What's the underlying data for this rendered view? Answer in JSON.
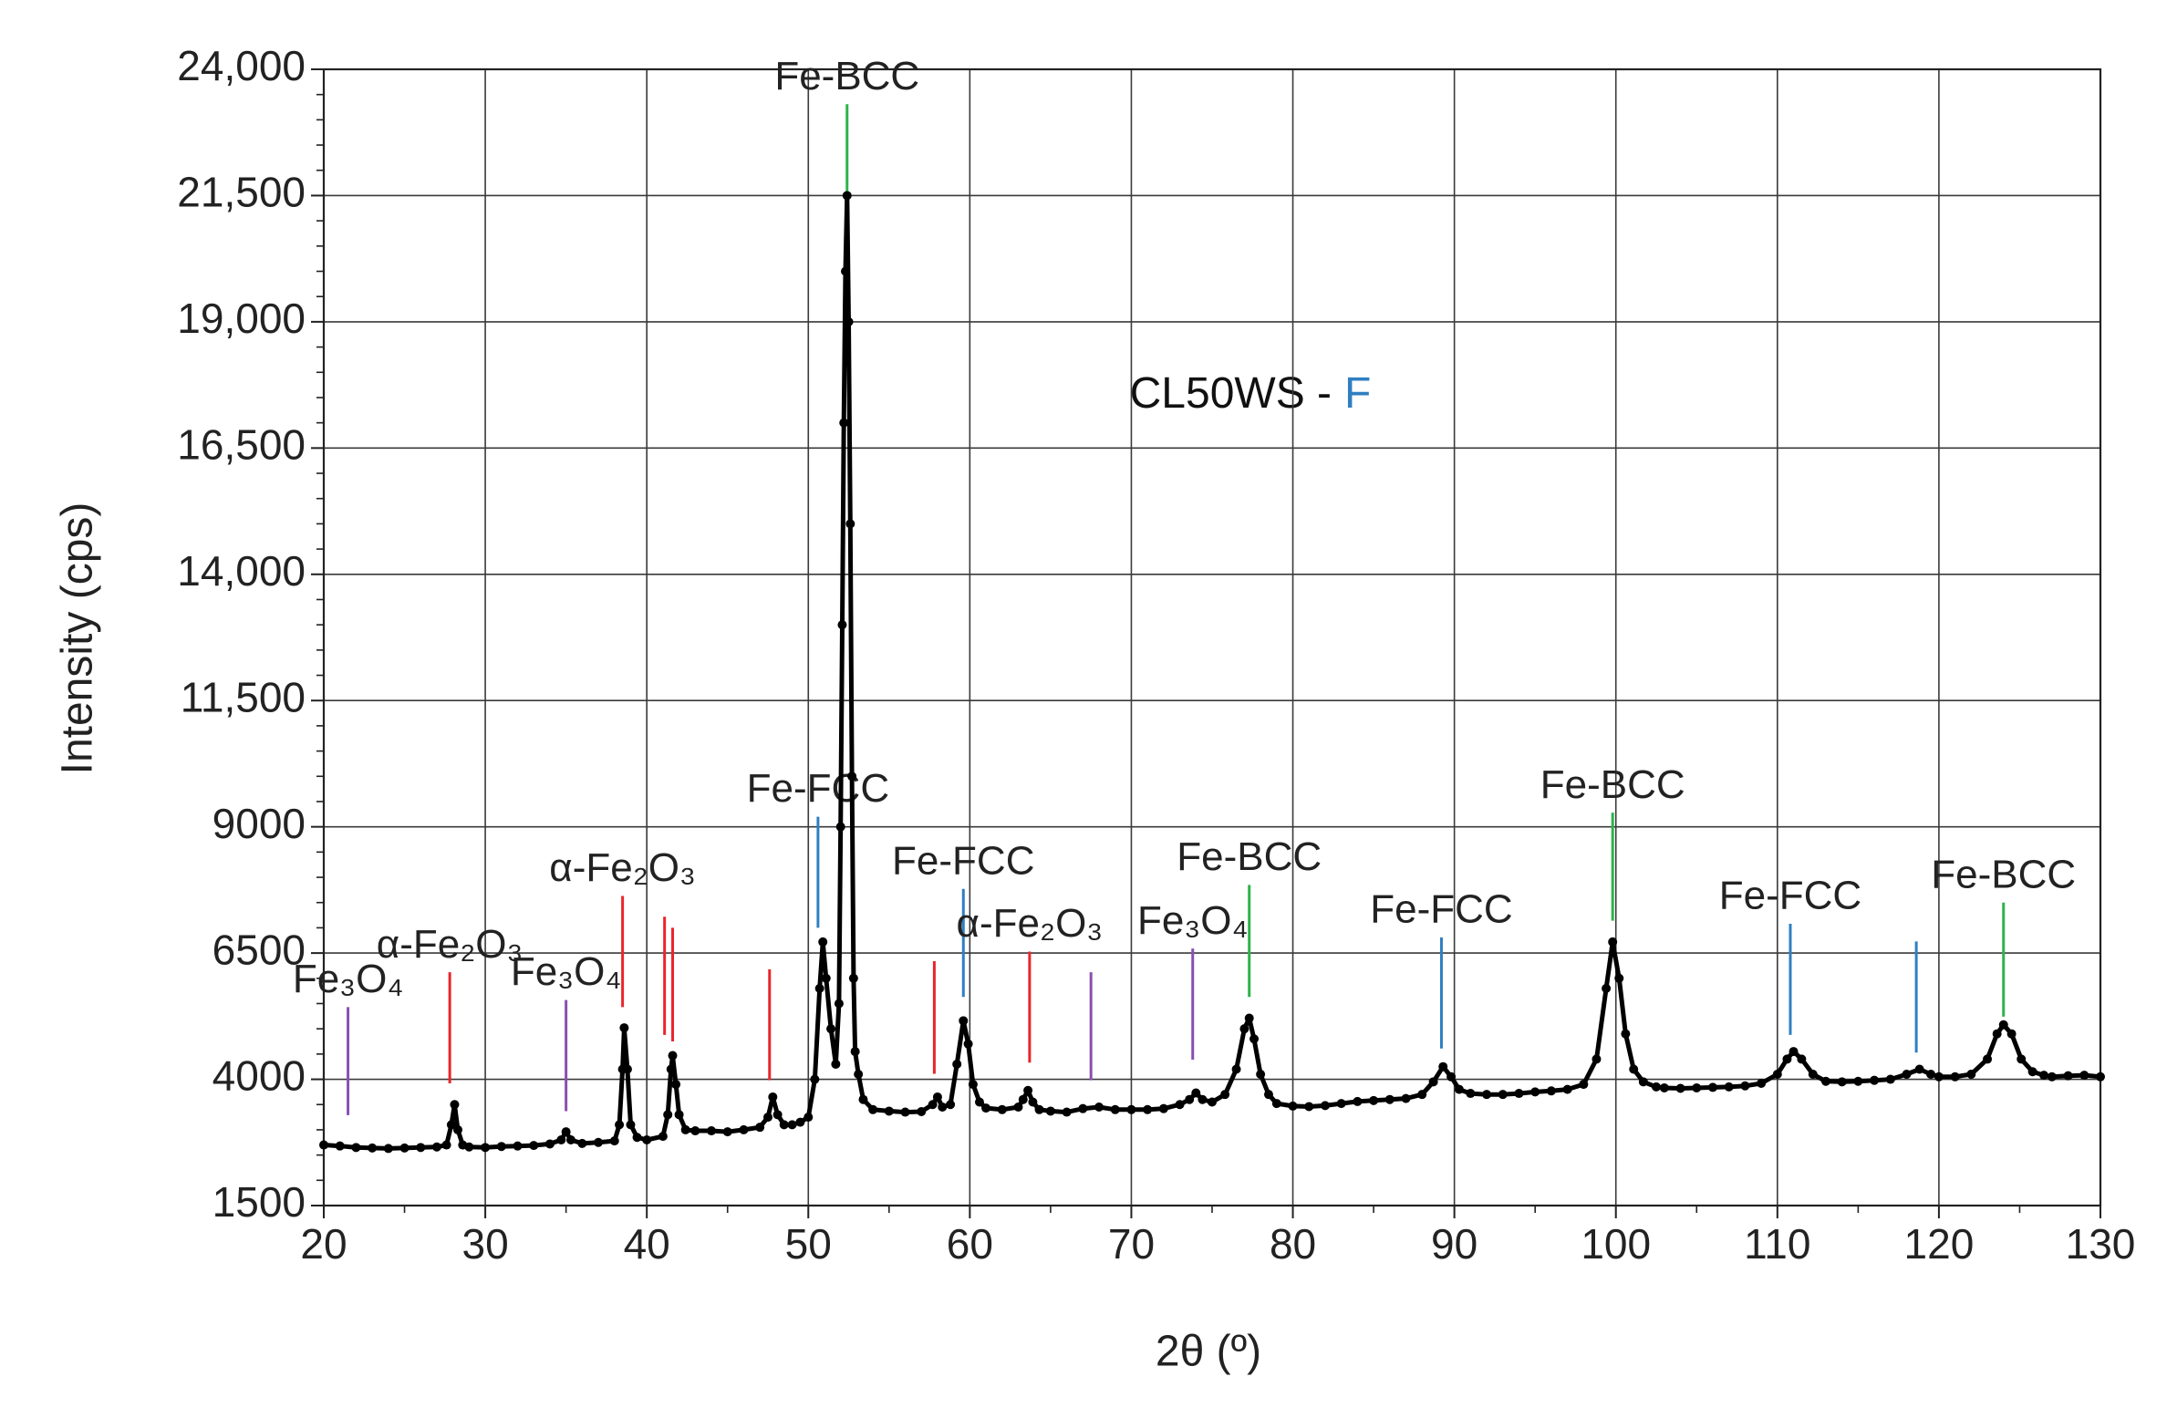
{
  "chart_data": {
    "type": "line",
    "markers": true,
    "x_label": "2θ (º)",
    "y_label": "Intensity (cps)",
    "annotation": {
      "parts": [
        "CL50WS -",
        "F"
      ],
      "colors": [
        "#111111",
        "#2f7fc1"
      ]
    },
    "xlim": [
      20,
      130
    ],
    "xticks": [
      20,
      30,
      40,
      50,
      60,
      70,
      80,
      90,
      100,
      110,
      120,
      130
    ],
    "ylim": [
      1500,
      24000
    ],
    "yticks": [
      1500,
      4000,
      6500,
      9000,
      {
        "value": 11500,
        "label": "11,500"
      },
      {
        "value": 14000,
        "label": "14,000"
      },
      {
        "value": 16500,
        "label": "16,500"
      },
      {
        "value": 19000,
        "label": "19,000"
      },
      {
        "value": 21500,
        "label": "21,500"
      },
      {
        "value": 24000,
        "label": "24,000"
      }
    ],
    "grid": true,
    "series": [
      {
        "name": "CL50WS - F",
        "color": "#000000",
        "x": [
          20,
          21,
          22,
          23,
          24,
          25,
          26,
          27,
          27.6,
          27.9,
          28.1,
          28.3,
          28.6,
          29,
          30,
          31,
          32,
          33,
          34,
          34.7,
          35,
          35.3,
          36,
          37,
          38,
          38.3,
          38.5,
          38.6,
          38.8,
          39,
          39.4,
          40,
          41,
          41.3,
          41.5,
          41.6,
          41.8,
          42,
          42.4,
          43,
          44,
          45,
          46,
          47,
          47.5,
          47.8,
          48.1,
          48.5,
          49,
          49.5,
          50,
          50.4,
          50.7,
          50.9,
          51.1,
          51.4,
          51.7,
          51.9,
          52.0,
          52.1,
          52.2,
          52.3,
          52.4,
          52.5,
          52.6,
          52.7,
          52.8,
          52.9,
          53.1,
          53.4,
          54,
          55,
          56,
          57,
          57.7,
          58,
          58.3,
          58.8,
          59.2,
          59.6,
          59.9,
          60.2,
          60.6,
          61,
          62,
          63,
          63.3,
          63.6,
          63.9,
          64.3,
          65,
          66,
          67,
          68,
          69,
          70,
          71,
          72,
          73,
          73.6,
          74,
          74.4,
          75,
          75.8,
          76.5,
          77,
          77.3,
          77.6,
          78,
          78.5,
          79,
          80,
          81,
          82,
          83,
          84,
          85,
          86,
          87,
          88,
          88.7,
          89.3,
          89.8,
          90.3,
          91,
          92,
          93,
          94,
          95,
          96,
          97,
          98,
          98.8,
          99.4,
          99.8,
          100.2,
          100.6,
          101.1,
          101.7,
          102.5,
          103,
          104,
          105,
          106,
          107,
          108,
          109,
          110,
          110.6,
          111,
          111.5,
          112.2,
          113,
          114,
          115,
          116,
          117,
          118,
          118.8,
          119.5,
          120,
          121,
          122,
          123,
          123.6,
          124,
          124.5,
          125.1,
          125.8,
          126.5,
          127,
          128,
          129,
          130
        ],
        "values": [
          2700,
          2680,
          2650,
          2640,
          2630,
          2640,
          2650,
          2660,
          2700,
          3100,
          3500,
          3000,
          2700,
          2660,
          2650,
          2670,
          2680,
          2690,
          2720,
          2800,
          2960,
          2800,
          2730,
          2750,
          2780,
          3100,
          4200,
          5020,
          4200,
          3100,
          2850,
          2800,
          2870,
          3300,
          4200,
          4470,
          3900,
          3300,
          3000,
          2980,
          2980,
          2960,
          3000,
          3050,
          3250,
          3650,
          3300,
          3100,
          3100,
          3150,
          3250,
          4000,
          5800,
          6720,
          6000,
          5000,
          4300,
          5500,
          9000,
          13000,
          17000,
          20000,
          21500,
          19000,
          15000,
          10000,
          6000,
          4550,
          4100,
          3600,
          3400,
          3370,
          3350,
          3360,
          3500,
          3650,
          3450,
          3500,
          4300,
          5160,
          4700,
          3900,
          3550,
          3430,
          3400,
          3450,
          3600,
          3780,
          3550,
          3400,
          3370,
          3350,
          3420,
          3450,
          3400,
          3400,
          3400,
          3420,
          3500,
          3600,
          3730,
          3600,
          3550,
          3700,
          4200,
          5000,
          5210,
          4800,
          4100,
          3700,
          3520,
          3470,
          3460,
          3480,
          3520,
          3560,
          3580,
          3600,
          3620,
          3700,
          3950,
          4250,
          4050,
          3800,
          3720,
          3700,
          3700,
          3720,
          3750,
          3770,
          3800,
          3900,
          4400,
          5800,
          6720,
          6000,
          4900,
          4200,
          3950,
          3850,
          3830,
          3820,
          3830,
          3840,
          3850,
          3870,
          3920,
          4100,
          4400,
          4550,
          4400,
          4100,
          3960,
          3950,
          3960,
          3980,
          4000,
          4100,
          4200,
          4100,
          4050,
          4050,
          4100,
          4400,
          4900,
          5080,
          4900,
          4400,
          4150,
          4080,
          4050,
          4070,
          4080,
          4050
        ]
      }
    ],
    "markers_lines": [
      {
        "x": 21.5,
        "ymin": 3290,
        "ymax": 5430,
        "color": "#8a4fb0",
        "label": "Fe₃O₄"
      },
      {
        "x": 27.8,
        "ymin": 3920,
        "ymax": 6120,
        "color": "#e8262a",
        "label": "α-Fe₂O₃"
      },
      {
        "x": 35,
        "ymin": 3370,
        "ymax": 5570,
        "color": "#8a4fb0",
        "label": "Fe₃O₄"
      },
      {
        "x": 38.5,
        "ymin": 5430,
        "ymax": 7630,
        "color": "#e8262a",
        "label": "α-Fe₂O₃"
      },
      {
        "x": 41.1,
        "ymin": 4880,
        "ymax": 7220,
        "color": "#e8262a"
      },
      {
        "x": 41.6,
        "ymin": 4750,
        "ymax": 7000,
        "color": "#e8262a"
      },
      {
        "x": 47.6,
        "ymin": 3980,
        "ymax": 6180,
        "color": "#e8262a"
      },
      {
        "x": 50.6,
        "ymin": 7000,
        "ymax": 9200,
        "color": "#2f7fc1",
        "label": "Fe-FCC"
      },
      {
        "x": 52.4,
        "ymin": 21520,
        "ymax": 23310,
        "color": "#2db34a",
        "label": "Fe-BCC"
      },
      {
        "x": 57.8,
        "ymin": 4110,
        "ymax": 6340,
        "color": "#e8262a"
      },
      {
        "x": 59.6,
        "ymin": 5630,
        "ymax": 7770,
        "color": "#2f7fc1",
        "label": "Fe-FCC"
      },
      {
        "x": 63.7,
        "ymin": 4330,
        "ymax": 6530,
        "color": "#e8262a",
        "label": "α-Fe₂O₃"
      },
      {
        "x": 67.5,
        "ymin": 3980,
        "ymax": 6120,
        "color": "#8a4fb0"
      },
      {
        "x": 73.8,
        "ymin": 4390,
        "ymax": 6590,
        "color": "#8a4fb0",
        "label": "Fe₃O₄"
      },
      {
        "x": 77.3,
        "ymin": 5630,
        "ymax": 7850,
        "color": "#2db34a",
        "label": "Fe-BCC"
      },
      {
        "x": 89.2,
        "ymin": 4610,
        "ymax": 6810,
        "color": "#2f7fc1",
        "label": "Fe-FCC"
      },
      {
        "x": 99.8,
        "ymin": 7140,
        "ymax": 9280,
        "color": "#2db34a",
        "label": "Fe-BCC"
      },
      {
        "x": 110.8,
        "ymin": 4880,
        "ymax": 7080,
        "color": "#2f7fc1",
        "label": "Fe-FCC"
      },
      {
        "x": 118.6,
        "ymin": 4530,
        "ymax": 6730,
        "color": "#2f7fc1"
      },
      {
        "x": 124,
        "ymin": 5240,
        "ymax": 7500,
        "color": "#2db34a",
        "label": "Fe-BCC"
      }
    ]
  }
}
